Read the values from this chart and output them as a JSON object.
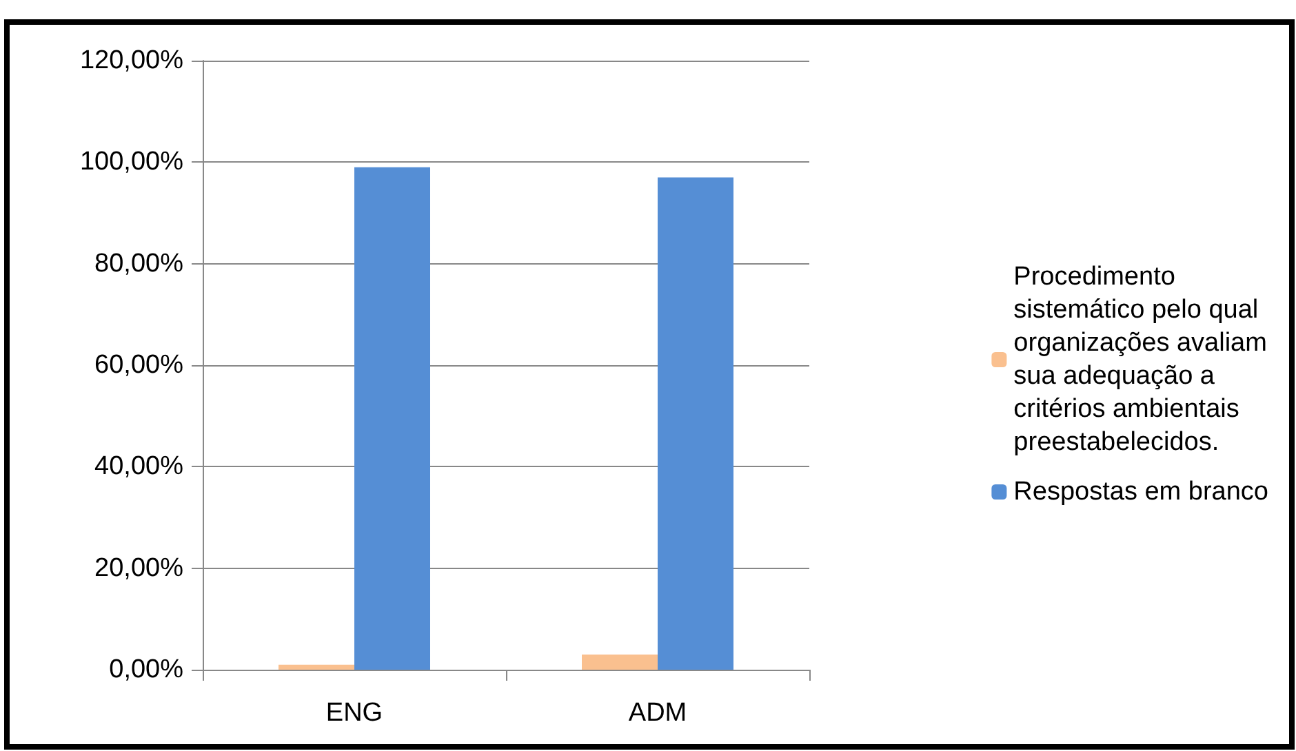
{
  "chart_data": {
    "type": "bar",
    "categories": [
      "ENG",
      "ADM"
    ],
    "series": [
      {
        "name": "Procedimento sistemático pelo qual organizações avaliam sua adequação a critérios ambientais preestabelecidos.",
        "color": "#fac08f",
        "values": [
          1,
          3
        ]
      },
      {
        "name": "Respostas em branco",
        "color": "#558ed5",
        "values": [
          99,
          97
        ]
      }
    ],
    "ylim": [
      0,
      120
    ],
    "yticks": [
      {
        "value": 0,
        "label": "0,00%"
      },
      {
        "value": 20,
        "label": "20,00%"
      },
      {
        "value": 40,
        "label": "40,00%"
      },
      {
        "value": 60,
        "label": "60,00%"
      },
      {
        "value": 80,
        "label": "80,00%"
      },
      {
        "value": 100,
        "label": "100,00%"
      },
      {
        "value": 120,
        "label": "120,00%"
      }
    ],
    "grid": "y",
    "legend": "right"
  }
}
